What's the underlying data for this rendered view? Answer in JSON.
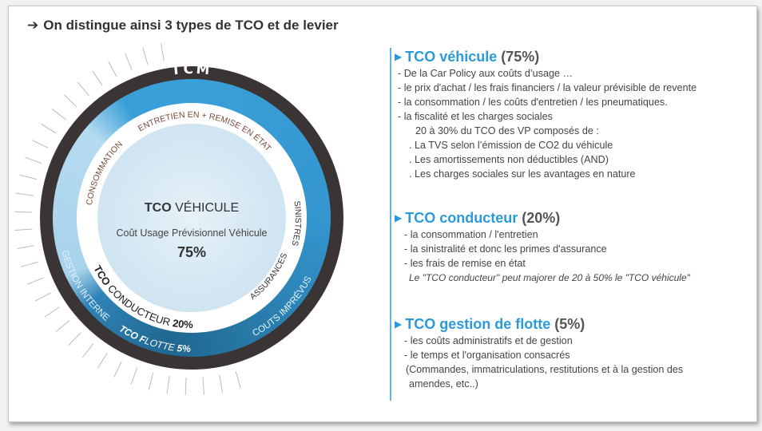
{
  "title": {
    "arrow": "➔",
    "text": "On distingue ainsi 3 types de TCO et de levier"
  },
  "diagram": {
    "outer_label": "TCM",
    "top_label": "ENTRETIEN EN + REMISE EN ÉTAT",
    "consommation": "CONSOMMATION",
    "sinistres": "SINISTRES",
    "assurances": "ASSURANCES",
    "center_title_bold": "TCO",
    "center_title": "VÉHICULE",
    "center_subtitle": "Coût Usage Prévisionnel Véhicule",
    "center_pct": "75%",
    "conducteur_bold": "TCO",
    "conducteur": "CONDUCTEUR",
    "conducteur_pct": "20%",
    "gestion_interne": "GESTION INTERNE",
    "flotte_bold": "TCO F",
    "flotte": "LOTTE",
    "flotte_pct": "5%",
    "imprevus": "COUTS IMPRÉVUS",
    "colors": {
      "outer": "#3b3434",
      "blue_light": "#a8d3ec",
      "blue": "#3a9fd8",
      "blue_dark": "#1f6790",
      "inner": "#d7e8f3"
    }
  },
  "sections": [
    {
      "label": "TCO véhicule",
      "pct": "(75%)",
      "lines": [
        "- De la Car Policy aux coûts d’usage …",
        "- le prix d'achat / les frais financiers / la valeur prévisible de revente",
        "- la consommation / les coûts d'entretien / les pneumatiques.",
        "- la fiscalité et les charges sociales",
        "20 à 30% du TCO des VP composés de :",
        ". La TVS selon l’émission de CO2 du véhicule",
        ". Les amortissements non déductibles (AND)",
        ". Les charges sociales sur les avantages en nature"
      ]
    },
    {
      "label": "TCO conducteur",
      "pct": "(20%)",
      "lines": [
        "- la consommation / l'entretien",
        "- la sinistralité et donc les primes d'assurance",
        "- les frais de remise en état",
        "Le \"TCO conducteur\" peut majorer de 20 à 50% le \"TCO véhicule\""
      ]
    },
    {
      "label": "TCO gestion de flotte",
      "pct": "(5%)",
      "lines": [
        "- les coûts administratifs et de gestion",
        "- le temps et l'organisation consacrés",
        "(Commandes, immatriculations, restitutions et à la gestion des",
        "amendes, etc..)"
      ]
    }
  ]
}
